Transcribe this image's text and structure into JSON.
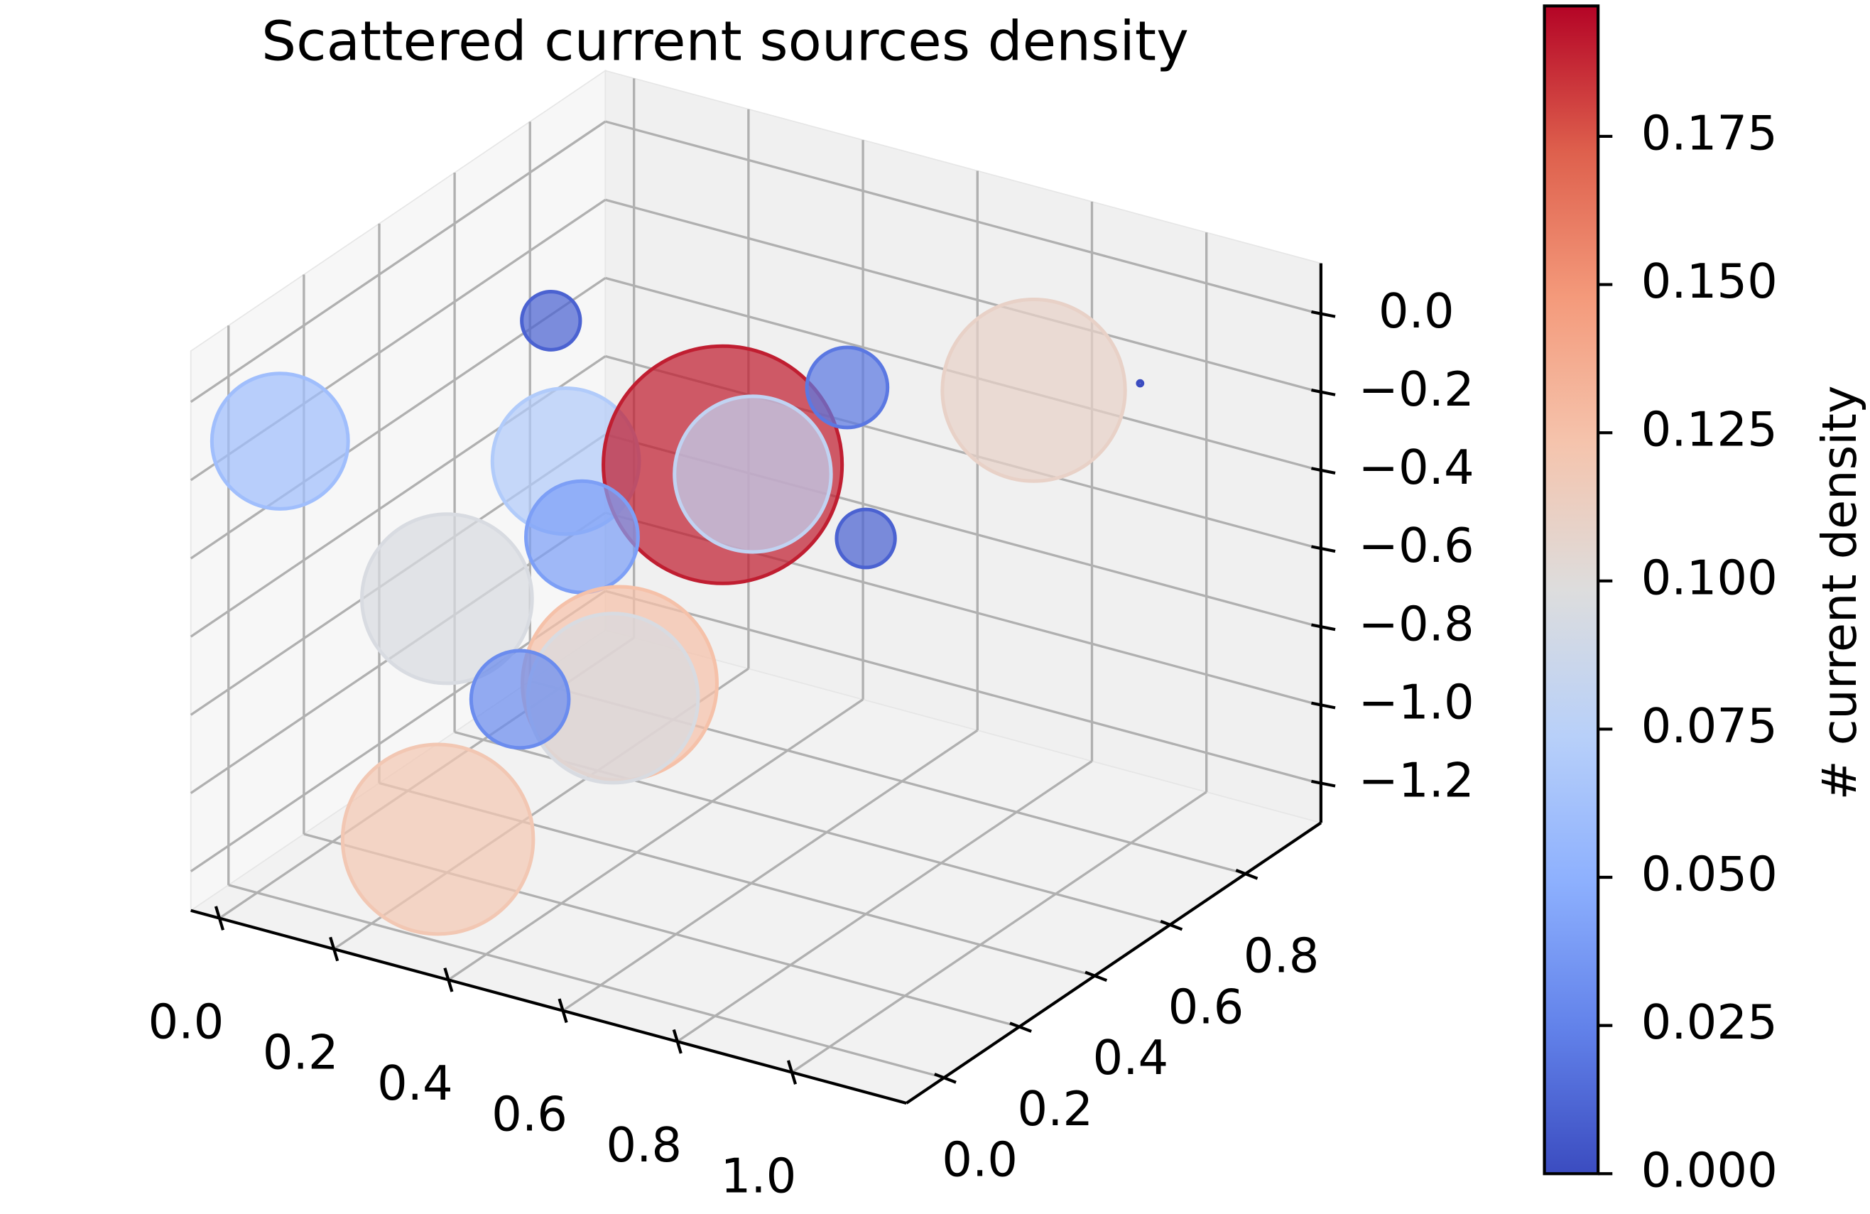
{
  "chart_data": {
    "type": "scatter3d",
    "title": "Scattered current sources density",
    "colorbar_label": "# current density",
    "x": [
      0.25,
      0.04,
      0.21,
      0.55,
      0.8,
      0.57,
      0.83,
      0.95,
      0.37,
      0.8,
      0.2,
      0.37,
      0.49,
      0.13,
      0.25
    ],
    "y": [
      0.4,
      0.0,
      0.5,
      0.4,
      0.1,
      0.7,
      0.8,
      0.9,
      0.3,
      0.4,
      0.2,
      0.4,
      0.2,
      0.5,
      0.1
    ],
    "z": [
      0.0,
      -0.13,
      -0.44,
      -0.25,
      0.02,
      -0.24,
      -0.21,
      -0.21,
      -0.44,
      -0.34,
      -0.6,
      -0.88,
      -0.74,
      -1.08,
      -1.13
    ],
    "values": [
      0.01,
      0.06,
      0.07,
      0.19,
      0.08,
      0.02,
      0.11,
      0.0,
      0.04,
      0.01,
      0.095,
      0.125,
      0.095,
      0.03,
      0.12
    ],
    "xlim": [
      -0.05,
      1.2
    ],
    "ylim": [
      -0.1,
      1.0
    ],
    "zlim": [
      -1.3,
      0.13
    ],
    "xticks": [
      {
        "value": 0,
        "label": "0.0"
      },
      0.2,
      0.4,
      0.6,
      0.8,
      {
        "value": 1,
        "label": "1.0"
      }
    ],
    "yticks": [
      {
        "value": 0,
        "label": "0.0"
      },
      0.2,
      0.4,
      0.6,
      0.8
    ],
    "zticks": [
      {
        "value": 0,
        "label": "0.0"
      },
      {
        "value": -0.2,
        "label": "−0.2"
      },
      {
        "value": -0.4,
        "label": "−0.4"
      },
      {
        "value": -0.6,
        "label": "−0.6"
      },
      {
        "value": -0.8,
        "label": "−0.8"
      },
      {
        "value": -1.0,
        "label": "−1.0"
      },
      {
        "value": -1.2,
        "label": "−1.2"
      }
    ],
    "clim": [
      0,
      0.197
    ],
    "cticks": [
      {
        "value": 0,
        "label": "0.000"
      },
      0.025,
      {
        "value": 0.05,
        "label": "0.050"
      },
      0.075,
      {
        "value": 0.1,
        "label": "0.100"
      },
      0.125,
      {
        "value": 0.15,
        "label": "0.150"
      },
      0.175
    ],
    "colormap": [
      "#3b4cc0",
      "#6282ea",
      "#8db0fe",
      "#b8d0f9",
      "#dddddd",
      "#f5c4ad",
      "#f49a7b",
      "#de604d",
      "#b40426"
    ],
    "grid": true
  }
}
